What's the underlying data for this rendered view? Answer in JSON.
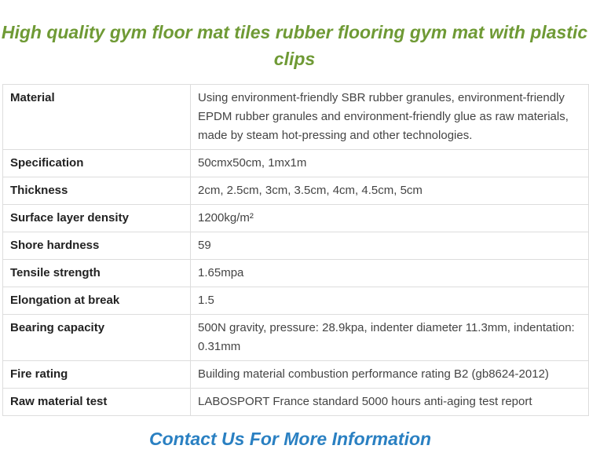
{
  "title": "High quality gym floor mat tiles rubber flooring gym mat with plastic clips",
  "specs": [
    {
      "label": "Material",
      "value": "Using environment-friendly SBR rubber granules, environment-friendly EPDM rubber granules and environment-friendly glue as raw materials, made by steam hot-pressing and other technologies."
    },
    {
      "label": "Specification",
      "value": "50cmx50cm, 1mx1m"
    },
    {
      "label": "Thickness",
      "value": "2cm, 2.5cm, 3cm, 3.5cm, 4cm, 4.5cm, 5cm"
    },
    {
      "label": "Surface layer density",
      "value": "1200kg/m²"
    },
    {
      "label": "Shore hardness",
      "value": "59"
    },
    {
      "label": "Tensile strength",
      "value": "1.65mpa"
    },
    {
      "label": "Elongation at break",
      "value": "1.5"
    },
    {
      "label": "Bearing capacity",
      "value": "500N gravity, pressure: 28.9kpa, indenter diameter 11.3mm, indentation: 0.31mm"
    },
    {
      "label": "Fire rating",
      "value": "Building material combustion performance rating B2 (gb8624-2012)"
    },
    {
      "label": "Raw material test",
      "value": "LABOSPORT France standard 5000 hours anti-aging test report"
    }
  ],
  "contact": "Contact Us For More Information",
  "colors": {
    "title": "#6f9a35",
    "contact": "#2a80c2"
  }
}
